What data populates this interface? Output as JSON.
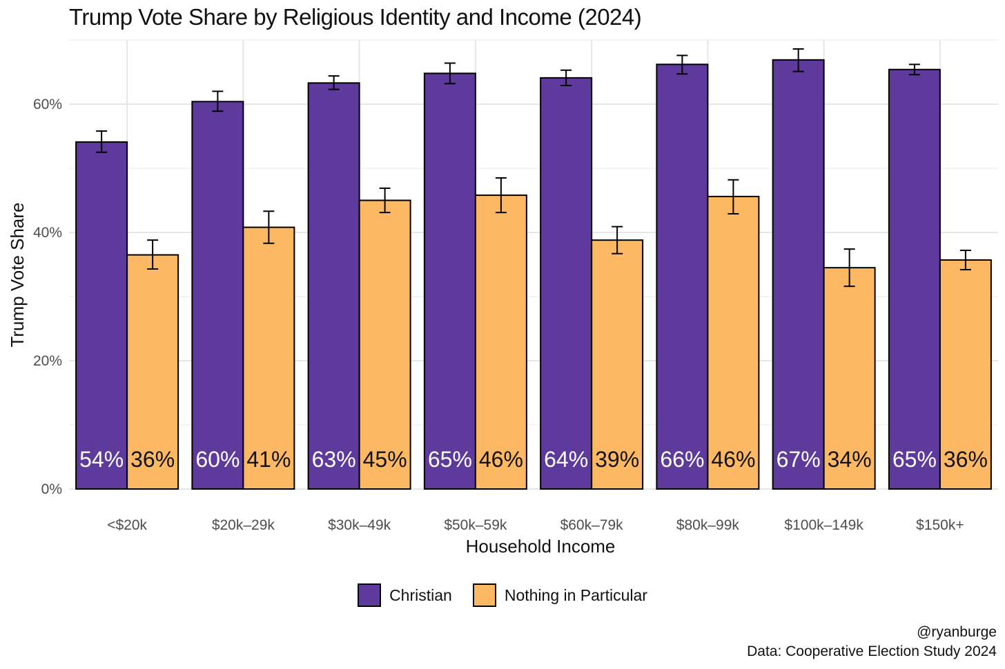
{
  "chart_data": {
    "type": "bar",
    "title": "Trump Vote Share by Religious Identity and Income (2024)",
    "xlabel": "Household Income",
    "ylabel": "Trump Vote Share",
    "categories": [
      "<$20k",
      "$20k–29k",
      "$30k–49k",
      "$50k–59k",
      "$60k–79k",
      "$80k–99k",
      "$100k–149k",
      "$150k+"
    ],
    "series": [
      {
        "name": "Christian",
        "color": "#5D3A9B",
        "values": [
          54.1,
          60.4,
          63.3,
          64.8,
          64.1,
          66.2,
          66.9,
          65.4
        ],
        "error_low": [
          52.5,
          58.9,
          62.3,
          63.2,
          62.9,
          64.7,
          65.1,
          64.6
        ],
        "error_high": [
          55.8,
          62.0,
          64.4,
          66.4,
          65.3,
          67.6,
          68.6,
          66.2
        ],
        "labels": [
          "54%",
          "60%",
          "63%",
          "65%",
          "64%",
          "66%",
          "67%",
          "65%"
        ]
      },
      {
        "name": "Nothing in Particular",
        "color": "#FDB863",
        "values": [
          36.5,
          40.8,
          45.0,
          45.8,
          38.8,
          45.6,
          34.5,
          35.7
        ],
        "error_low": [
          34.3,
          38.3,
          43.1,
          43.1,
          36.7,
          42.9,
          31.6,
          34.2
        ],
        "error_high": [
          38.8,
          43.3,
          46.9,
          48.5,
          40.9,
          48.2,
          37.4,
          37.2
        ],
        "labels": [
          "36%",
          "41%",
          "45%",
          "46%",
          "39%",
          "46%",
          "34%",
          "36%"
        ]
      }
    ],
    "yticks": [
      "0%",
      "20%",
      "40%",
      "60%"
    ],
    "ylim": [
      0,
      70
    ],
    "grid": true,
    "legend_position": "bottom"
  },
  "caption": {
    "handle": "@ryanburge",
    "source": "Data: Cooperative Election Study 2024"
  }
}
